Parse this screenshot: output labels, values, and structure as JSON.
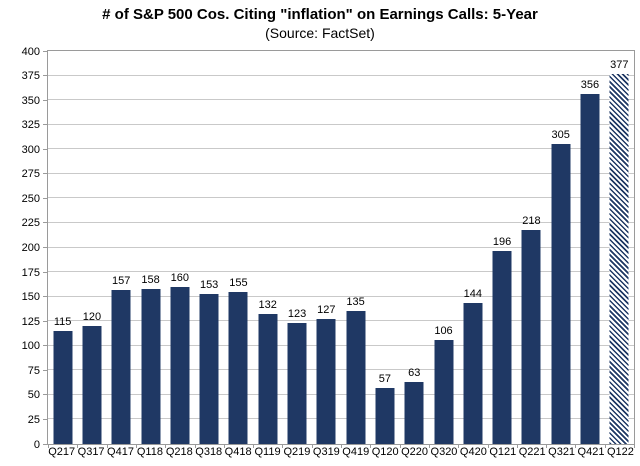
{
  "page": {
    "background": "#ffffff"
  },
  "chart_data": {
    "type": "bar",
    "title": "# of S&P 500 Cos. Citing \"inflation\" on Earnings Calls: 5-Year",
    "subtitle": "(Source: FactSet)",
    "categories": [
      "Q217",
      "Q317",
      "Q417",
      "Q118",
      "Q218",
      "Q318",
      "Q418",
      "Q119",
      "Q219",
      "Q319",
      "Q419",
      "Q120",
      "Q220",
      "Q320",
      "Q420",
      "Q121",
      "Q221",
      "Q321",
      "Q421",
      "Q122"
    ],
    "values": [
      115,
      120,
      157,
      158,
      160,
      153,
      155,
      132,
      123,
      127,
      135,
      57,
      63,
      106,
      144,
      196,
      218,
      305,
      356,
      377
    ],
    "xlabel": "",
    "ylabel": "",
    "ylim": [
      0,
      400
    ],
    "ytick_step": 25,
    "grid": true,
    "legend": "none",
    "data_labels": true,
    "bar_color": "#1f3864",
    "hatched_categories": [
      "Q122"
    ],
    "gridline_color": "#c9c9c9",
    "axis_border_color": "#9a9a9a"
  }
}
